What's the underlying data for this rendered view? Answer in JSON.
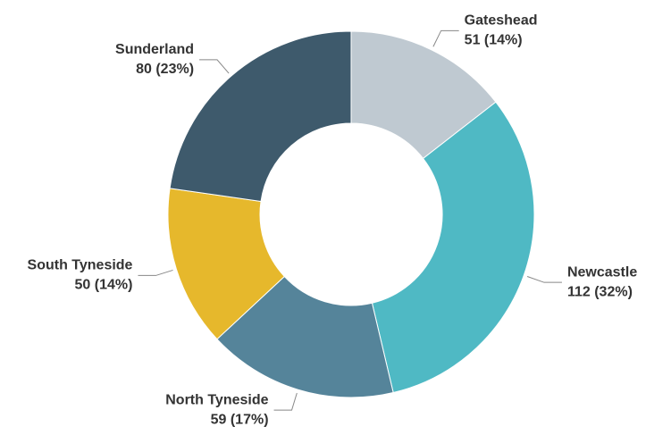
{
  "chart_data": {
    "type": "donut",
    "categories": [
      "Gateshead",
      "Newcastle",
      "North Tyneside",
      "South Tyneside",
      "Sunderland"
    ],
    "values": [
      51,
      112,
      59,
      50,
      80
    ],
    "value_labels": [
      "51 (14%)",
      "112 (32%)",
      "59 (17%)",
      "50 (14%)",
      "80 (23%)"
    ],
    "colors": [
      "#bfc9d1",
      "#4fb9c4",
      "#55849a",
      "#e6b82c",
      "#3e5a6c"
    ]
  }
}
